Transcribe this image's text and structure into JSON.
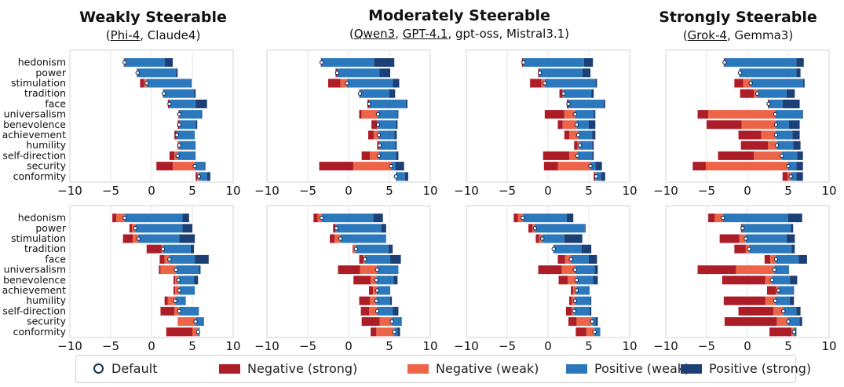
{
  "headers": [
    {
      "title": "Weakly Steerable",
      "models": [
        {
          "name": "Phi-4",
          "underline": true
        },
        {
          "name": "Claude4",
          "underline": false
        }
      ]
    },
    {
      "title": "Moderately Steerable",
      "models": [
        {
          "name": "Qwen3",
          "underline": true
        },
        {
          "name": "GPT-4.1",
          "underline": true
        },
        {
          "name": "gpt-oss",
          "underline": false
        },
        {
          "name": "Mistral3.1",
          "underline": false
        }
      ]
    },
    {
      "title": "Strongly Steerable",
      "models": [
        {
          "name": "Grok-4",
          "underline": true
        },
        {
          "name": "Gemma3",
          "underline": false
        }
      ]
    }
  ],
  "legend": {
    "default": "Default",
    "neg_strong": "Negative (strong)",
    "neg_weak": "Negative (weak)",
    "pos_weak": "Positive (weak)",
    "pos_strong": "Positive (strong)"
  },
  "colors": {
    "neg_strong": "#ad1d27",
    "neg_weak": "#ee6448",
    "pos_weak": "#2b78bd",
    "pos_strong": "#1c3f76",
    "default_edge": "#0d2f55"
  },
  "chart_data": {
    "type": "bar",
    "orientation": "horizontal",
    "categories": [
      "hedonism",
      "power",
      "stimulation",
      "tradition",
      "face",
      "universalism",
      "benevolence",
      "achievement",
      "humility",
      "self-direction",
      "security",
      "conformity"
    ],
    "xlim": [
      -10,
      10
    ],
    "xticks": [
      -10,
      -5,
      0,
      5,
      10
    ],
    "tick_labels": [
      "−10",
      "−5",
      "0",
      "5",
      "10"
    ],
    "grid": true,
    "value_order": "neg_strong, neg_weak, default, pos_weak, pos_strong",
    "panels": [
      {
        "values": [
          [
            -3.4,
            -3.3,
            -3.3,
            1.6,
            2.6
          ],
          [
            -1.8,
            -1.7,
            -1.7,
            3.0,
            3.2
          ],
          [
            -1.4,
            -0.9,
            -0.6,
            4.8,
            4.9
          ],
          [
            1.4,
            1.5,
            1.5,
            5.2,
            5.4
          ],
          [
            2.0,
            2.2,
            2.2,
            5.4,
            6.8
          ],
          [
            3.3,
            3.4,
            3.4,
            6.1,
            6.2
          ],
          [
            3.2,
            3.4,
            3.4,
            5.4,
            5.6
          ],
          [
            2.8,
            3.1,
            3.1,
            5.3,
            5.3
          ],
          [
            3.2,
            3.3,
            3.4,
            5.4,
            5.4
          ],
          [
            2.2,
            2.8,
            3.2,
            5.4,
            5.4
          ],
          [
            0.6,
            2.6,
            5.3,
            6.5,
            6.6
          ],
          [
            5.4,
            5.6,
            5.8,
            6.8,
            7.2
          ]
        ]
      },
      {
        "values": [
          [
            -3.4,
            -3.2,
            -3.3,
            3.1,
            5.6
          ],
          [
            -1.6,
            -1.4,
            -1.4,
            3.8,
            5.1
          ],
          [
            -2.5,
            -1.0,
            -0.2,
            5.4,
            6.2
          ],
          [
            1.3,
            1.4,
            1.4,
            5.0,
            5.7
          ],
          [
            2.3,
            2.5,
            2.5,
            7.0,
            7.2
          ],
          [
            1.3,
            1.6,
            3.6,
            6.0,
            6.1
          ],
          [
            2.8,
            3.5,
            3.6,
            5.8,
            6.0
          ],
          [
            2.4,
            3.1,
            3.7,
            5.6,
            5.9
          ],
          [
            3.5,
            3.7,
            3.8,
            5.7,
            5.9
          ],
          [
            1.6,
            2.6,
            3.7,
            5.8,
            6.1
          ],
          [
            -3.6,
            0.6,
            5.2,
            5.7,
            6.8
          ],
          [
            5.8,
            5.9,
            5.8,
            6.9,
            7.3
          ]
        ]
      },
      {
        "values": [
          [
            -3.2,
            -3.0,
            -3.0,
            4.4,
            5.5
          ],
          [
            -1.2,
            -1.0,
            -1.0,
            4.2,
            5.2
          ],
          [
            -2.2,
            -0.8,
            -0.4,
            5.8,
            6.0
          ],
          [
            1.4,
            1.8,
            1.9,
            5.3,
            5.6
          ],
          [
            2.3,
            2.5,
            2.5,
            6.8,
            7.0
          ],
          [
            -0.4,
            2.0,
            3.3,
            5.6,
            5.8
          ],
          [
            1.2,
            1.8,
            3.5,
            5.0,
            5.8
          ],
          [
            2.0,
            2.6,
            3.7,
            5.4,
            5.8
          ],
          [
            3.2,
            3.6,
            3.9,
            5.4,
            5.6
          ],
          [
            -0.6,
            2.6,
            3.6,
            5.4,
            5.6
          ],
          [
            -0.5,
            1.2,
            5.2,
            5.8,
            6.6
          ],
          [
            5.6,
            5.8,
            5.9,
            6.5,
            7.0
          ]
        ]
      },
      {
        "values": [
          [
            -2.9,
            -2.8,
            -2.8,
            6.0,
            6.9
          ],
          [
            -1.0,
            -0.9,
            -0.9,
            6.0,
            6.5
          ],
          [
            -1.6,
            -0.5,
            0.4,
            6.8,
            7.0
          ],
          [
            -0.9,
            0.8,
            1.2,
            4.8,
            5.8
          ],
          [
            2.5,
            2.6,
            2.6,
            4.3,
            6.4
          ],
          [
            -6.1,
            -4.8,
            3.4,
            6.7,
            6.8
          ],
          [
            -5.0,
            -0.7,
            3.5,
            5.1,
            6.4
          ],
          [
            -1.1,
            1.7,
            3.5,
            5.5,
            6.4
          ],
          [
            -0.8,
            2.5,
            3.6,
            5.6,
            6.5
          ],
          [
            -3.6,
            0.8,
            4.2,
            6.1,
            6.8
          ],
          [
            -6.7,
            -5.1,
            5.0,
            6.0,
            6.8
          ],
          [
            4.3,
            4.9,
            5.3,
            6.0,
            6.8
          ]
        ]
      },
      {
        "values": [
          [
            -4.8,
            -4.3,
            -3.3,
            3.8,
            4.6
          ],
          [
            -2.7,
            -2.4,
            -2.0,
            3.8,
            5.0
          ],
          [
            -3.5,
            -2.3,
            -1.6,
            3.4,
            5.3
          ],
          [
            -0.6,
            1.2,
            1.4,
            4.8,
            5.2
          ],
          [
            1.0,
            1.6,
            2.2,
            5.3,
            7.0
          ],
          [
            0.9,
            1.1,
            3.0,
            5.8,
            6.0
          ],
          [
            2.7,
            2.9,
            3.3,
            5.2,
            5.7
          ],
          [
            2.7,
            2.9,
            3.4,
            5.3,
            5.3
          ],
          [
            1.6,
            2.0,
            2.9,
            4.2,
            4.2
          ],
          [
            1.1,
            2.8,
            3.4,
            5.8,
            5.8
          ],
          [
            3.2,
            3.2,
            5.4,
            6.3,
            6.4
          ],
          [
            1.8,
            5.0,
            5.7,
            5.9,
            5.9
          ]
        ]
      },
      {
        "values": [
          [
            -4.3,
            -3.8,
            -3.3,
            3.0,
            4.2
          ],
          [
            -1.9,
            -1.6,
            -1.5,
            4.0,
            4.6
          ],
          [
            -2.3,
            -1.7,
            -1.0,
            4.6,
            4.6
          ],
          [
            0.5,
            0.6,
            0.9,
            4.9,
            5.4
          ],
          [
            1.3,
            1.8,
            2.0,
            5.1,
            6.4
          ],
          [
            -1.3,
            1.4,
            3.5,
            6.1,
            6.1
          ],
          [
            0.6,
            2.7,
            3.4,
            5.5,
            6.0
          ],
          [
            2.5,
            3.0,
            3.5,
            5.1,
            5.1
          ],
          [
            1.3,
            2.6,
            3.4,
            5.1,
            5.3
          ],
          [
            1.5,
            2.5,
            3.5,
            5.4,
            6.1
          ],
          [
            1.6,
            3.8,
            5.3,
            6.4,
            6.5
          ],
          [
            2.7,
            3.4,
            5.6,
            6.0,
            6.3
          ]
        ]
      },
      {
        "values": [
          [
            -4.2,
            -3.7,
            -3.1,
            2.3,
            3.1
          ],
          [
            -2.4,
            -1.9,
            -1.6,
            4.5,
            4.6
          ],
          [
            -1.5,
            -1.1,
            -0.7,
            2.0,
            4.2
          ],
          [
            0.6,
            0.6,
            0.7,
            4.1,
            5.3
          ],
          [
            1.2,
            2.1,
            2.8,
            5.0,
            6.0
          ],
          [
            -1.2,
            1.7,
            3.3,
            5.7,
            6.1
          ],
          [
            1.3,
            2.4,
            3.5,
            5.5,
            6.1
          ],
          [
            2.8,
            3.1,
            3.5,
            5.1,
            5.1
          ],
          [
            2.6,
            2.9,
            3.3,
            5.2,
            5.3
          ],
          [
            2.2,
            2.9,
            3.2,
            5.1,
            5.3
          ],
          [
            2.5,
            3.5,
            5.4,
            5.8,
            6.1
          ],
          [
            3.4,
            4.7,
            5.7,
            6.4,
            6.4
          ]
        ]
      },
      {
        "values": [
          [
            -4.8,
            -4.0,
            -3.0,
            5.0,
            6.7
          ],
          [
            -0.8,
            -0.6,
            -0.6,
            5.3,
            5.6
          ],
          [
            -3.4,
            -1.0,
            -0.2,
            4.8,
            5.8
          ],
          [
            -1.6,
            -0.2,
            0.2,
            5.4,
            5.8
          ],
          [
            2.1,
            2.8,
            3.5,
            6.3,
            7.3
          ],
          [
            -6.1,
            -1.4,
            3.3,
            5.1,
            5.1
          ],
          [
            -3.1,
            2.2,
            3.0,
            5.2,
            6.1
          ],
          [
            2.4,
            3.5,
            3.8,
            5.6,
            5.7
          ],
          [
            -2.9,
            2.2,
            3.4,
            5.2,
            5.7
          ],
          [
            -1.1,
            3.2,
            4.4,
            6.0,
            6.5
          ],
          [
            -2.8,
            3.6,
            5.0,
            6.4,
            6.7
          ],
          [
            2.7,
            5.4,
            5.7,
            5.9,
            6.0
          ]
        ]
      }
    ]
  }
}
